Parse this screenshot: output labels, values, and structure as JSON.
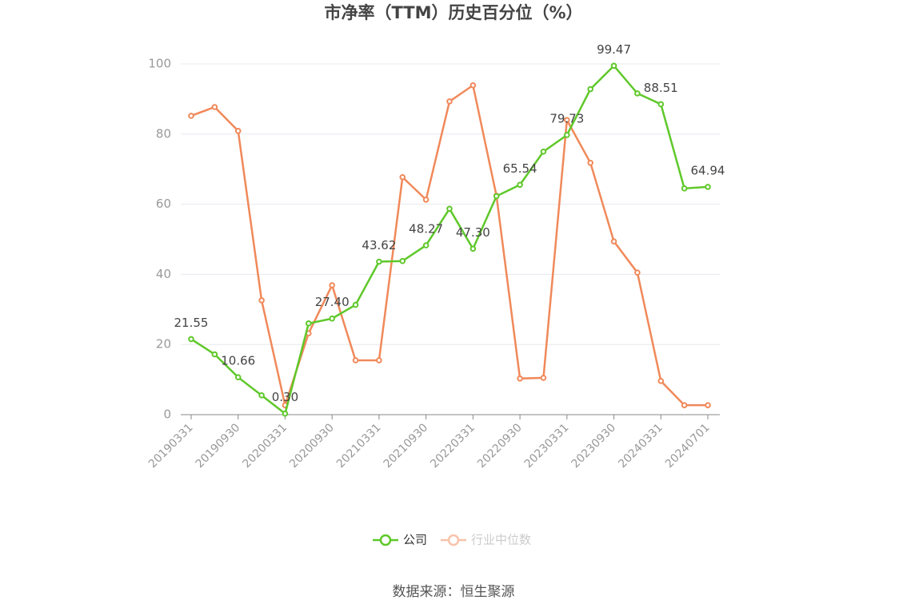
{
  "chart_data": {
    "type": "line",
    "title": "市净率（TTM）历史百分位（%）",
    "source": "数据来源：恒生聚源",
    "categories": [
      "20190331",
      null,
      "20190930",
      null,
      "20200331",
      null,
      "20200930",
      null,
      "20210331",
      null,
      "20210930",
      null,
      "20220331",
      null,
      "20220930",
      null,
      "20230331",
      null,
      "20230930",
      null,
      "20240331",
      null,
      "20240701"
    ],
    "series": [
      {
        "name": "公司",
        "color": "#5fc82a",
        "values": [
          21.55,
          17.2,
          10.66,
          5.5,
          0.3,
          26.0,
          27.4,
          31.3,
          43.62,
          43.8,
          48.27,
          58.7,
          47.3,
          62.3,
          65.54,
          75.0,
          79.73,
          92.8,
          99.47,
          91.6,
          88.51,
          64.5,
          64.94
        ],
        "value_labels": [
          "21.55",
          null,
          "10.66",
          null,
          "0.30",
          null,
          "27.40",
          null,
          "43.62",
          null,
          "48.27",
          null,
          "47.30",
          null,
          "65.54",
          null,
          "79.73",
          null,
          "99.47",
          null,
          "88.51",
          null,
          "64.94"
        ]
      },
      {
        "name": "行业中位数",
        "color": "#f0895a",
        "values": [
          85.2,
          87.7,
          80.9,
          32.6,
          2.7,
          23.2,
          36.9,
          15.5,
          15.5,
          67.7,
          61.3,
          89.3,
          93.9,
          62.4,
          10.3,
          10.5,
          84.0,
          71.8,
          49.4,
          40.5,
          9.6,
          2.7,
          2.7
        ]
      }
    ],
    "ylim": [
      0,
      100
    ],
    "yticks": [
      0,
      20,
      40,
      60,
      80,
      100
    ],
    "grid": true
  }
}
